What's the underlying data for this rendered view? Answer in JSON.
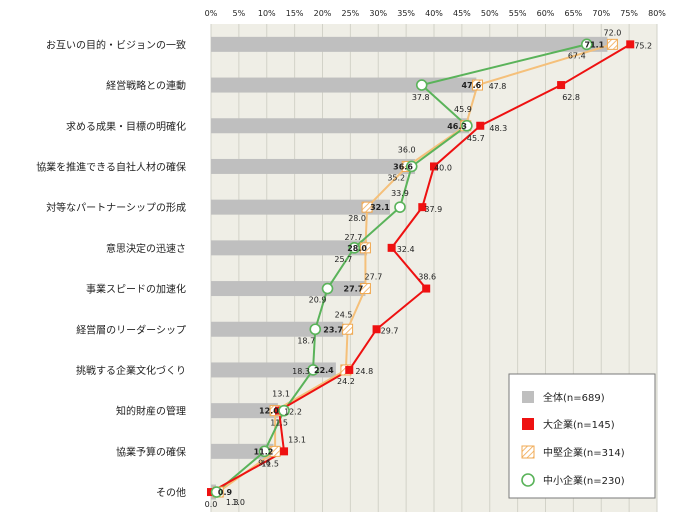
{
  "chart_data": {
    "type": "bar",
    "orientation": "horizontal",
    "categories": [
      "お互いの目的・ビジョンの一致",
      "経営戦略との連動",
      "求める成果・目標の明確化",
      "協業を推進できる自社人材の確保",
      "対等なパートナーシップの形成",
      "意思決定の迅速さ",
      "事業スピードの加速化",
      "経営層のリーダーシップ",
      "挑戦する企業文化づくり",
      "知的財産の管理",
      "協業予算の確保",
      "その他"
    ],
    "xlim": [
      0,
      80
    ],
    "ticks": [
      "0%",
      "5%",
      "10%",
      "15%",
      "20%",
      "25%",
      "30%",
      "35%",
      "40%",
      "45%",
      "50%",
      "55%",
      "60%",
      "65%",
      "70%",
      "75%",
      "80%"
    ],
    "grid": true,
    "legend_position": "bottom-right",
    "series": [
      {
        "name": "全体(n=689)",
        "kind": "bar",
        "color": "#bfbfbf",
        "values": [
          71.1,
          47.6,
          46.3,
          36.6,
          32.1,
          28.0,
          27.7,
          23.7,
          22.4,
          12.0,
          11.2,
          0.9
        ]
      },
      {
        "name": "大企業(n=145)",
        "kind": "line",
        "marker": "square",
        "color": "#ee1111",
        "values": [
          75.2,
          62.8,
          48.3,
          40.0,
          37.9,
          32.4,
          38.6,
          29.7,
          24.8,
          12.2,
          13.1,
          0.0
        ]
      },
      {
        "name": "中堅企業(n=314)",
        "kind": "line",
        "marker": "hatched-square",
        "color": "#f5c07a",
        "values": [
          72.0,
          47.8,
          45.7,
          35.2,
          28.0,
          27.7,
          27.7,
          24.5,
          24.2,
          11.5,
          11.5,
          1.3
        ]
      },
      {
        "name": "中小企業(n=230)",
        "kind": "line",
        "marker": "circle",
        "color": "#5ab35a",
        "values": [
          67.4,
          37.8,
          45.9,
          36.0,
          33.9,
          25.7,
          20.9,
          18.7,
          18.3,
          13.1,
          9.6,
          1.0
        ]
      }
    ]
  }
}
